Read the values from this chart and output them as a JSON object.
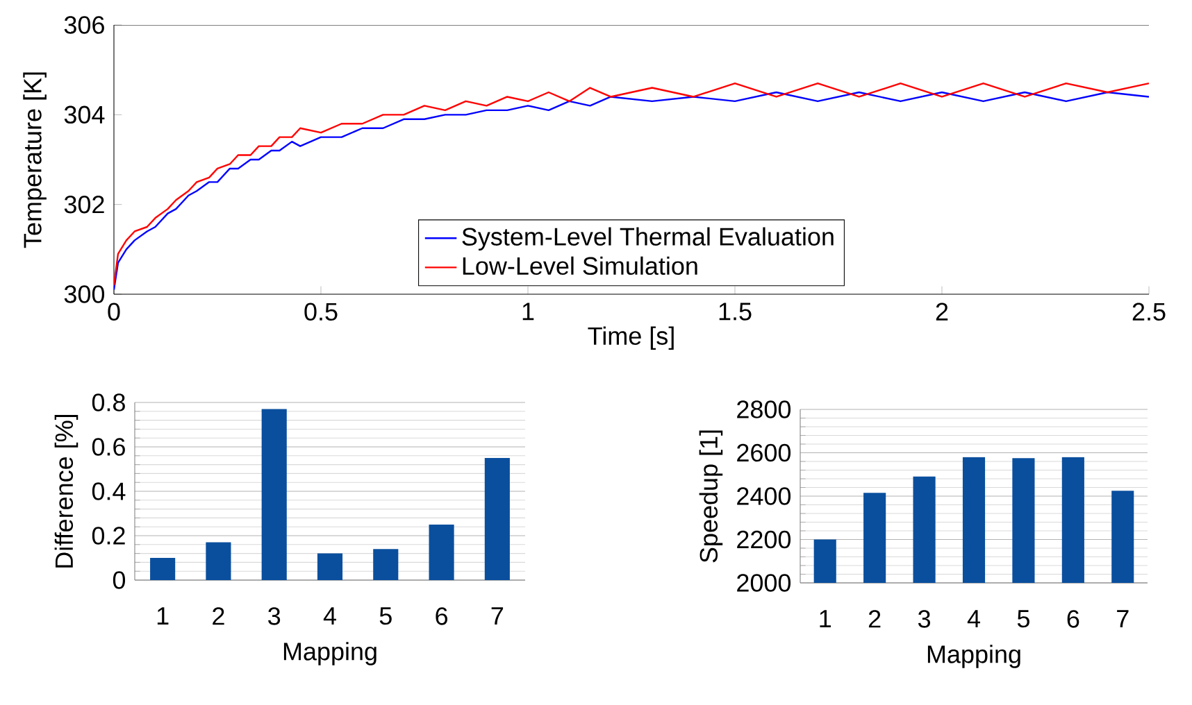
{
  "chart_data": [
    {
      "type": "line",
      "xlabel": "Time [s]",
      "ylabel": "Temperature [K]",
      "x": [
        0,
        0.01,
        0.03,
        0.05,
        0.08,
        0.1,
        0.13,
        0.15,
        0.18,
        0.2,
        0.23,
        0.25,
        0.28,
        0.3,
        0.33,
        0.35,
        0.38,
        0.4,
        0.43,
        0.45,
        0.5,
        0.55,
        0.6,
        0.65,
        0.7,
        0.75,
        0.8,
        0.85,
        0.9,
        0.95,
        1.0,
        1.05,
        1.1,
        1.15,
        1.2,
        1.3,
        1.4,
        1.5,
        1.6,
        1.7,
        1.8,
        1.9,
        2.0,
        2.1,
        2.2,
        2.3,
        2.4,
        2.5
      ],
      "series": [
        {
          "name": "System-Level Thermal Evaluation",
          "color": "#0000ff",
          "values": [
            300.1,
            300.7,
            301.0,
            301.2,
            301.4,
            301.5,
            301.8,
            301.9,
            302.2,
            302.3,
            302.5,
            302.5,
            302.8,
            302.8,
            303.0,
            303.0,
            303.2,
            303.2,
            303.4,
            303.3,
            303.5,
            303.5,
            303.7,
            303.7,
            303.9,
            303.9,
            304.0,
            304.0,
            304.1,
            304.1,
            304.2,
            304.1,
            304.3,
            304.2,
            304.4,
            304.3,
            304.4,
            304.3,
            304.5,
            304.3,
            304.5,
            304.3,
            304.5,
            304.3,
            304.5,
            304.3,
            304.5,
            304.4
          ]
        },
        {
          "name": "Low-Level Simulation",
          "color": "#ff0000",
          "values": [
            300.2,
            300.9,
            301.2,
            301.4,
            301.5,
            301.7,
            301.9,
            302.1,
            302.3,
            302.5,
            302.6,
            302.8,
            302.9,
            303.1,
            303.1,
            303.3,
            303.3,
            303.5,
            303.5,
            303.7,
            303.6,
            303.8,
            303.8,
            304.0,
            304.0,
            304.2,
            304.1,
            304.3,
            304.2,
            304.4,
            304.3,
            304.5,
            304.3,
            304.6,
            304.4,
            304.6,
            304.4,
            304.7,
            304.4,
            304.7,
            304.4,
            304.7,
            304.4,
            304.7,
            304.4,
            304.7,
            304.5,
            304.7
          ]
        }
      ],
      "xlim": [
        0,
        2.5
      ],
      "xticks": [
        0,
        0.5,
        1,
        1.5,
        2,
        2.5
      ],
      "ylim": [
        300,
        306
      ],
      "yticks": [
        300,
        302,
        304,
        306
      ],
      "legend": "bottom"
    },
    {
      "type": "bar",
      "xlabel": "Mapping",
      "ylabel": "Difference [%]",
      "categories": [
        "1",
        "2",
        "3",
        "4",
        "5",
        "6",
        "7"
      ],
      "values": [
        0.1,
        0.17,
        0.77,
        0.12,
        0.14,
        0.25,
        0.55
      ],
      "color": "#0a4f9e",
      "ylim": [
        0,
        0.8
      ],
      "yticks": [
        0,
        0.2,
        0.4,
        0.6,
        0.8
      ],
      "grid": "y"
    },
    {
      "type": "bar",
      "xlabel": "Mapping",
      "ylabel": "Speedup [1]",
      "categories": [
        "1",
        "2",
        "3",
        "4",
        "5",
        "6",
        "7"
      ],
      "values": [
        2200,
        2415,
        2490,
        2580,
        2575,
        2580,
        2425
      ],
      "color": "#0a4f9e",
      "ylim": [
        2000,
        2800
      ],
      "yticks": [
        2000,
        2200,
        2400,
        2600,
        2800
      ],
      "grid": "y"
    }
  ]
}
